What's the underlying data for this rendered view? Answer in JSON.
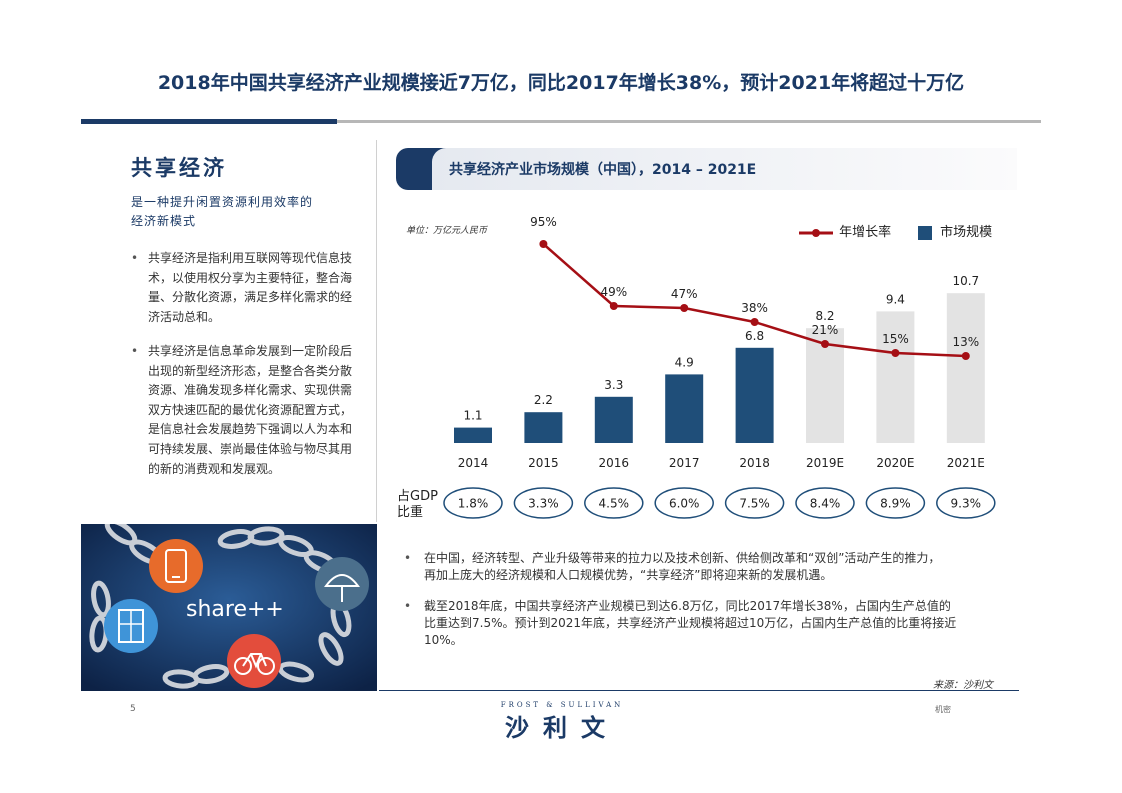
{
  "page": {
    "title": "2018年中国共享经济产业规模接近7万亿，同比2017年增长38%，预计2021年将超过十万亿",
    "page_number": "5",
    "confidential": "机密",
    "brand_en": "FROST & SULLIVAN",
    "brand_cn": "沙利文"
  },
  "left_panel": {
    "heading": "共享经济",
    "subheading_line1": "是一种提升闲置资源利用效率的",
    "subheading_line2": "经济新模式",
    "bullet1": "共享经济是指利用互联网等现代信息技术，以使用权分享为主要特征，整合海量、分散化资源，满足多样化需求的经济活动总和。",
    "bullet2": "共享经济是信息革命发展到一定阶段后出现的新型经济形态，是整合各类分散资源、准确发现多样化需求、实现供需双方快速匹配的最优化资源配置方式，是信息社会发展趋势下强调以人为本和可持续发展、崇尚最佳体验与物尽其用的新的消费观和发展观。",
    "image_text": "share++"
  },
  "chart_header": "共享经济产业市场规模（中国），2014 – 2021E",
  "chart_data": {
    "type": "bar",
    "unit_label": "单位：万亿元人民币",
    "categories": [
      "2014",
      "2015",
      "2016",
      "2017",
      "2018",
      "2019E",
      "2020E",
      "2021E"
    ],
    "series": [
      {
        "name": "市场规模",
        "type": "bar",
        "values": [
          1.1,
          2.2,
          3.3,
          4.9,
          6.8,
          8.2,
          9.4,
          10.7
        ],
        "value_labels": [
          "1.1",
          "2.2",
          "3.3",
          "4.9",
          "6.8",
          "8.2",
          "9.4",
          "10.7"
        ]
      },
      {
        "name": "年增长率",
        "type": "line",
        "x": [
          "2015",
          "2016",
          "2017",
          "2018",
          "2019E",
          "2020E",
          "2021E"
        ],
        "values": [
          95,
          49,
          47,
          38,
          21,
          15,
          13
        ],
        "value_labels": [
          "95%",
          "49%",
          "47%",
          "38%",
          "21%",
          "15%",
          "13%"
        ]
      }
    ],
    "gdp_label_line1": "占GDP",
    "gdp_label_line2": "比重",
    "gdp_share": [
      "1.8%",
      "3.3%",
      "4.5%",
      "6.0%",
      "7.5%",
      "8.4%",
      "8.9%",
      "9.3%"
    ],
    "actual_bar_color": "#1f4e79",
    "forecast_bar_color": "#e3e3e3",
    "line_color": "#a50f15",
    "grid": false
  },
  "right_bullets": {
    "b1_line1": "在中国，经济转型、产业升级等带来的拉力以及技术创新、供给侧改革和“双创”活动产生的推力，",
    "b1_line2": "再加上庞大的经济规模和人口规模优势，“共享经济”即将迎来新的发展机遇。",
    "b2_line1": "截至2018年底，中国共享经济产业规模已到达6.8万亿，同比2017年增长38%，占国内生产总值的",
    "b2_line2": "比重达到7.5%。预计到2021年底，共享经济产业规模将超过10万亿，占国内生产总值的比重将接近",
    "b2_line3": "10%。"
  },
  "source": "来源：沙利文",
  "colors": {
    "navy": "#1b3a66",
    "bar_dark": "#1f4e79",
    "bar_light": "#e3e3e3",
    "line_red": "#a50f15"
  },
  "icons": [
    "phone-icon",
    "umbrella-icon",
    "door-icon",
    "bicycle-icon",
    "chain-icon"
  ]
}
